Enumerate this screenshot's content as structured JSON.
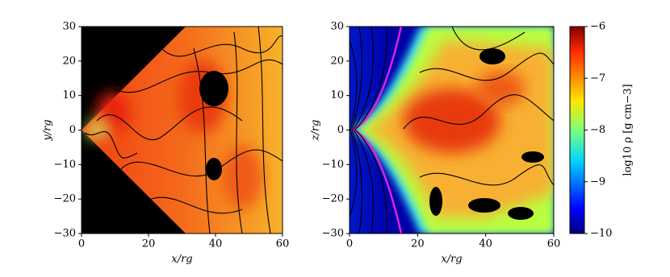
{
  "chart_data": [
    {
      "type": "heatmap",
      "xlabel": "x/rg",
      "ylabel": "y/rg",
      "xlim": [
        0,
        60
      ],
      "ylim": [
        -30,
        30
      ],
      "xticks": [
        0,
        20,
        40,
        60
      ],
      "yticks": [
        {
          "value": -30,
          "label": "−30"
        },
        {
          "value": -20,
          "label": "−20"
        },
        {
          "value": -10,
          "label": "−10"
        },
        0,
        10,
        20,
        30
      ]
    },
    {
      "type": "heatmap",
      "xlabel": "x/rg",
      "ylabel": "z/rg",
      "xlim": [
        0,
        60
      ],
      "ylim": [
        -30,
        30
      ],
      "xticks": [
        0,
        20,
        40,
        60
      ],
      "yticks": [
        {
          "value": -30,
          "label": "−30"
        },
        {
          "value": -20,
          "label": "−20"
        },
        {
          "value": -10,
          "label": "−10"
        },
        0,
        10,
        20,
        30
      ]
    }
  ],
  "colorbar": {
    "label": "log10 ρ [g cm−3]",
    "clim": [
      -10,
      -6
    ],
    "ticks": [
      {
        "value": -10,
        "label": "−10"
      },
      {
        "value": -9,
        "label": "−9"
      },
      {
        "value": -8,
        "label": "−8"
      },
      {
        "value": -7,
        "label": "−7"
      },
      {
        "value": -6,
        "label": "−6"
      }
    ]
  }
}
